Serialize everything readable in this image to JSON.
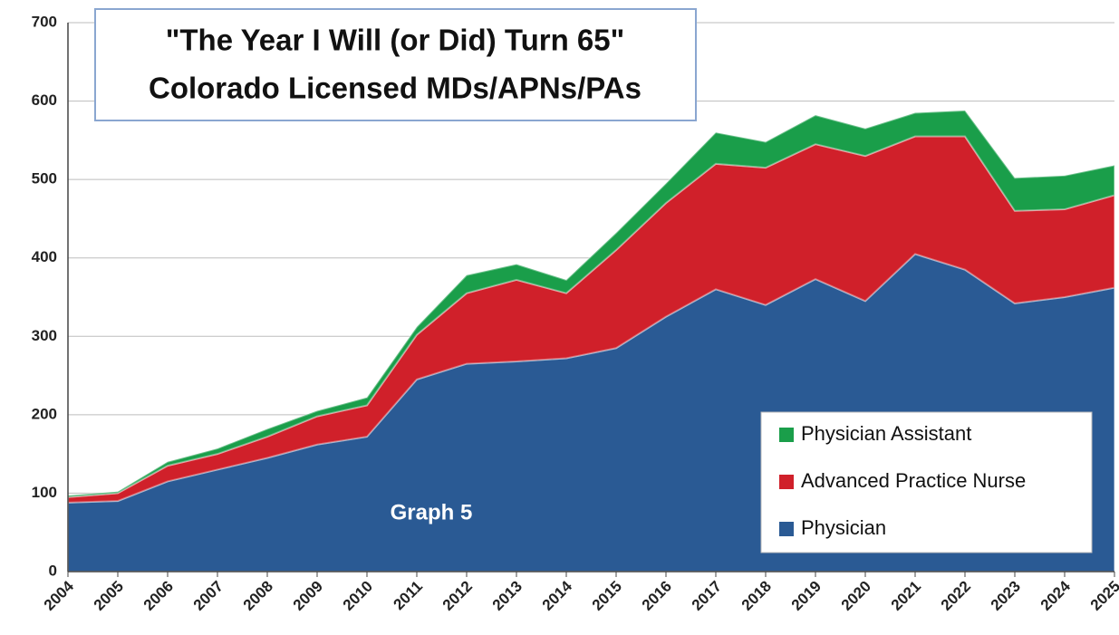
{
  "chart_data": {
    "type": "stacked-area",
    "title": [
      "\"The Year I Will (or Did) Turn 65\"",
      "Colorado Licensed MDs/APNs/PAs"
    ],
    "annotation": "Graph 5",
    "categories": [
      "2004",
      "2005",
      "2006",
      "2007",
      "2008",
      "2009",
      "2010",
      "2011",
      "2012",
      "2013",
      "2014",
      "2015",
      "2016",
      "2017",
      "2018",
      "2019",
      "2020",
      "2021",
      "2022",
      "2023",
      "2024",
      "2025"
    ],
    "series": [
      {
        "name": "Physician",
        "color": "#2a5a94",
        "values": [
          88,
          90,
          115,
          130,
          145,
          162,
          172,
          245,
          265,
          268,
          272,
          285,
          325,
          360,
          340,
          373,
          345,
          405,
          385,
          342,
          350,
          362
        ]
      },
      {
        "name": "Advanced Practice Nurse",
        "color": "#d0202a",
        "values": [
          7,
          10,
          20,
          20,
          27,
          36,
          40,
          57,
          90,
          104,
          83,
          125,
          145,
          160,
          175,
          172,
          185,
          150,
          170,
          118,
          112,
          118
        ]
      },
      {
        "name": "Physician Assistant",
        "color": "#1a9e4a",
        "values": [
          2,
          2,
          5,
          7,
          10,
          7,
          10,
          10,
          23,
          20,
          17,
          22,
          25,
          40,
          33,
          37,
          35,
          30,
          33,
          42,
          43,
          38
        ]
      }
    ],
    "ylim": [
      0,
      700
    ],
    "yticks": [
      0,
      100,
      200,
      300,
      400,
      500,
      600,
      700
    ],
    "grid": true
  }
}
